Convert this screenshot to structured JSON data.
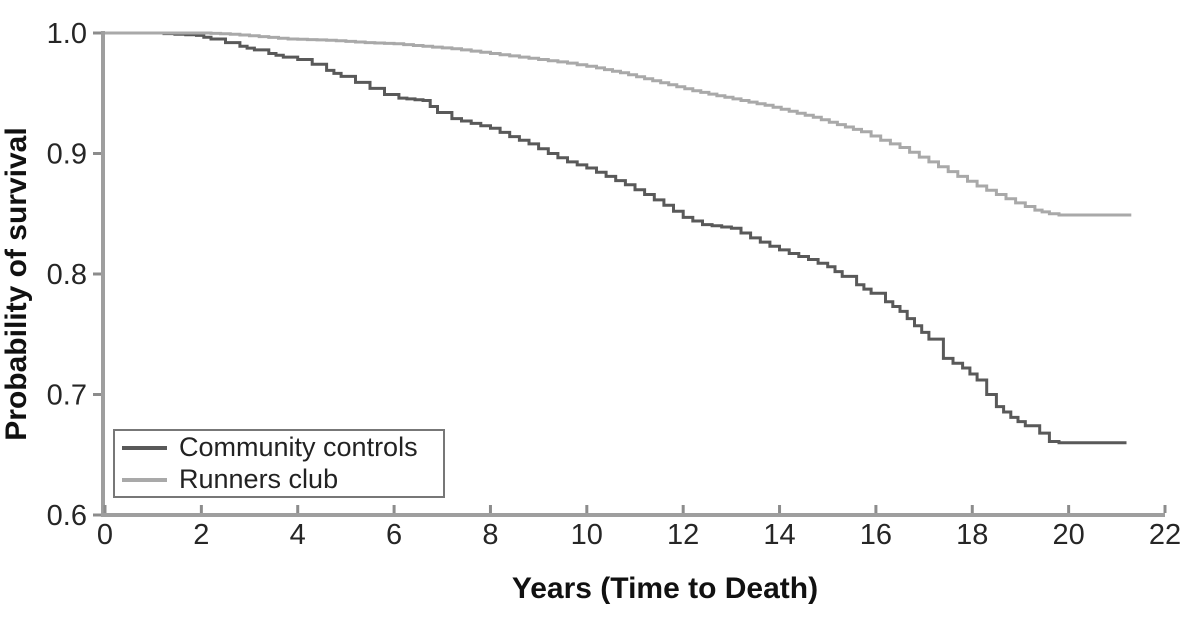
{
  "chart_data": {
    "type": "line",
    "variant": "kaplan_meier_step_survival",
    "title": "",
    "xlabel": "Years (Time to Death)",
    "ylabel": "Probability of survival",
    "xlim": [
      0,
      22
    ],
    "ylim": [
      0.6,
      1.0
    ],
    "x_ticks": [
      0,
      2,
      4,
      6,
      8,
      10,
      12,
      14,
      16,
      18,
      20,
      22
    ],
    "y_ticks": [
      1.0,
      0.9,
      0.8,
      0.7,
      0.6
    ],
    "y_tick_labels": [
      "1.0",
      "0.9",
      "0.8",
      "0.7",
      "0.6"
    ],
    "grid": false,
    "legend_position": "lower-left",
    "series": [
      {
        "name": "Community controls",
        "color": "#595959",
        "end_value": 0.66,
        "points": [
          [
            0,
            1.0
          ],
          [
            1.0,
            1.0
          ],
          [
            1.9,
            0.998
          ],
          [
            2.2,
            0.995
          ],
          [
            2.5,
            0.992
          ],
          [
            2.8,
            0.989
          ],
          [
            3.1,
            0.986
          ],
          [
            3.4,
            0.983
          ],
          [
            3.7,
            0.98
          ],
          [
            4.0,
            0.978
          ],
          [
            4.3,
            0.974
          ],
          [
            4.6,
            0.969
          ],
          [
            4.9,
            0.964
          ],
          [
            5.2,
            0.959
          ],
          [
            5.5,
            0.954
          ],
          [
            5.8,
            0.949
          ],
          [
            6.1,
            0.946
          ],
          [
            6.6,
            0.944
          ],
          [
            6.9,
            0.934
          ],
          [
            7.2,
            0.929
          ],
          [
            7.6,
            0.925
          ],
          [
            8.0,
            0.921
          ],
          [
            8.4,
            0.914
          ],
          [
            8.8,
            0.908
          ],
          [
            9.2,
            0.9
          ],
          [
            9.6,
            0.893
          ],
          [
            10.0,
            0.888
          ],
          [
            10.4,
            0.881
          ],
          [
            10.8,
            0.874
          ],
          [
            11.2,
            0.866
          ],
          [
            11.6,
            0.857
          ],
          [
            12.0,
            0.847
          ],
          [
            12.4,
            0.841
          ],
          [
            13.0,
            0.838
          ],
          [
            13.4,
            0.83
          ],
          [
            13.8,
            0.823
          ],
          [
            14.2,
            0.817
          ],
          [
            14.6,
            0.812
          ],
          [
            15.0,
            0.806
          ],
          [
            15.3,
            0.798
          ],
          [
            15.6,
            0.791
          ],
          [
            15.9,
            0.784
          ],
          [
            16.2,
            0.777
          ],
          [
            16.5,
            0.769
          ],
          [
            16.8,
            0.757
          ],
          [
            17.1,
            0.746
          ],
          [
            17.4,
            0.73
          ],
          [
            17.8,
            0.722
          ],
          [
            18.1,
            0.712
          ],
          [
            18.3,
            0.7
          ],
          [
            18.5,
            0.69
          ],
          [
            18.8,
            0.681
          ],
          [
            19.1,
            0.674
          ],
          [
            19.4,
            0.668
          ],
          [
            19.6,
            0.661
          ],
          [
            19.8,
            0.66
          ],
          [
            21.2,
            0.66
          ]
        ]
      },
      {
        "name": "Runners club",
        "color": "#a9a9a9",
        "end_value": 0.85,
        "points": [
          [
            0,
            1.0
          ],
          [
            2.0,
            1.0
          ],
          [
            2.6,
            0.999
          ],
          [
            3.2,
            0.997
          ],
          [
            3.8,
            0.995
          ],
          [
            4.6,
            0.994
          ],
          [
            5.4,
            0.992
          ],
          [
            6.0,
            0.991
          ],
          [
            6.6,
            0.989
          ],
          [
            7.2,
            0.987
          ],
          [
            7.8,
            0.984
          ],
          [
            8.4,
            0.981
          ],
          [
            9.0,
            0.978
          ],
          [
            9.6,
            0.975
          ],
          [
            10.2,
            0.971
          ],
          [
            10.7,
            0.967
          ],
          [
            11.2,
            0.962
          ],
          [
            11.7,
            0.957
          ],
          [
            12.2,
            0.952
          ],
          [
            12.7,
            0.948
          ],
          [
            13.2,
            0.944
          ],
          [
            13.7,
            0.94
          ],
          [
            14.2,
            0.935
          ],
          [
            14.7,
            0.93
          ],
          [
            15.2,
            0.924
          ],
          [
            15.7,
            0.918
          ],
          [
            16.1,
            0.911
          ],
          [
            16.5,
            0.905
          ],
          [
            16.9,
            0.897
          ],
          [
            17.3,
            0.889
          ],
          [
            17.7,
            0.881
          ],
          [
            18.1,
            0.873
          ],
          [
            18.5,
            0.866
          ],
          [
            18.9,
            0.859
          ],
          [
            19.3,
            0.853
          ],
          [
            19.6,
            0.85
          ],
          [
            19.8,
            0.849
          ],
          [
            21.3,
            0.849
          ]
        ]
      }
    ],
    "style": {
      "axis_color": "#9e9e9e",
      "tick_color": "#8c8c8c",
      "tick_label_color": "#262626",
      "axis_title_color": "#111111",
      "curve_width": 3
    }
  },
  "legend": {
    "items": [
      {
        "label": "Community controls"
      },
      {
        "label": "Runners club"
      }
    ]
  }
}
